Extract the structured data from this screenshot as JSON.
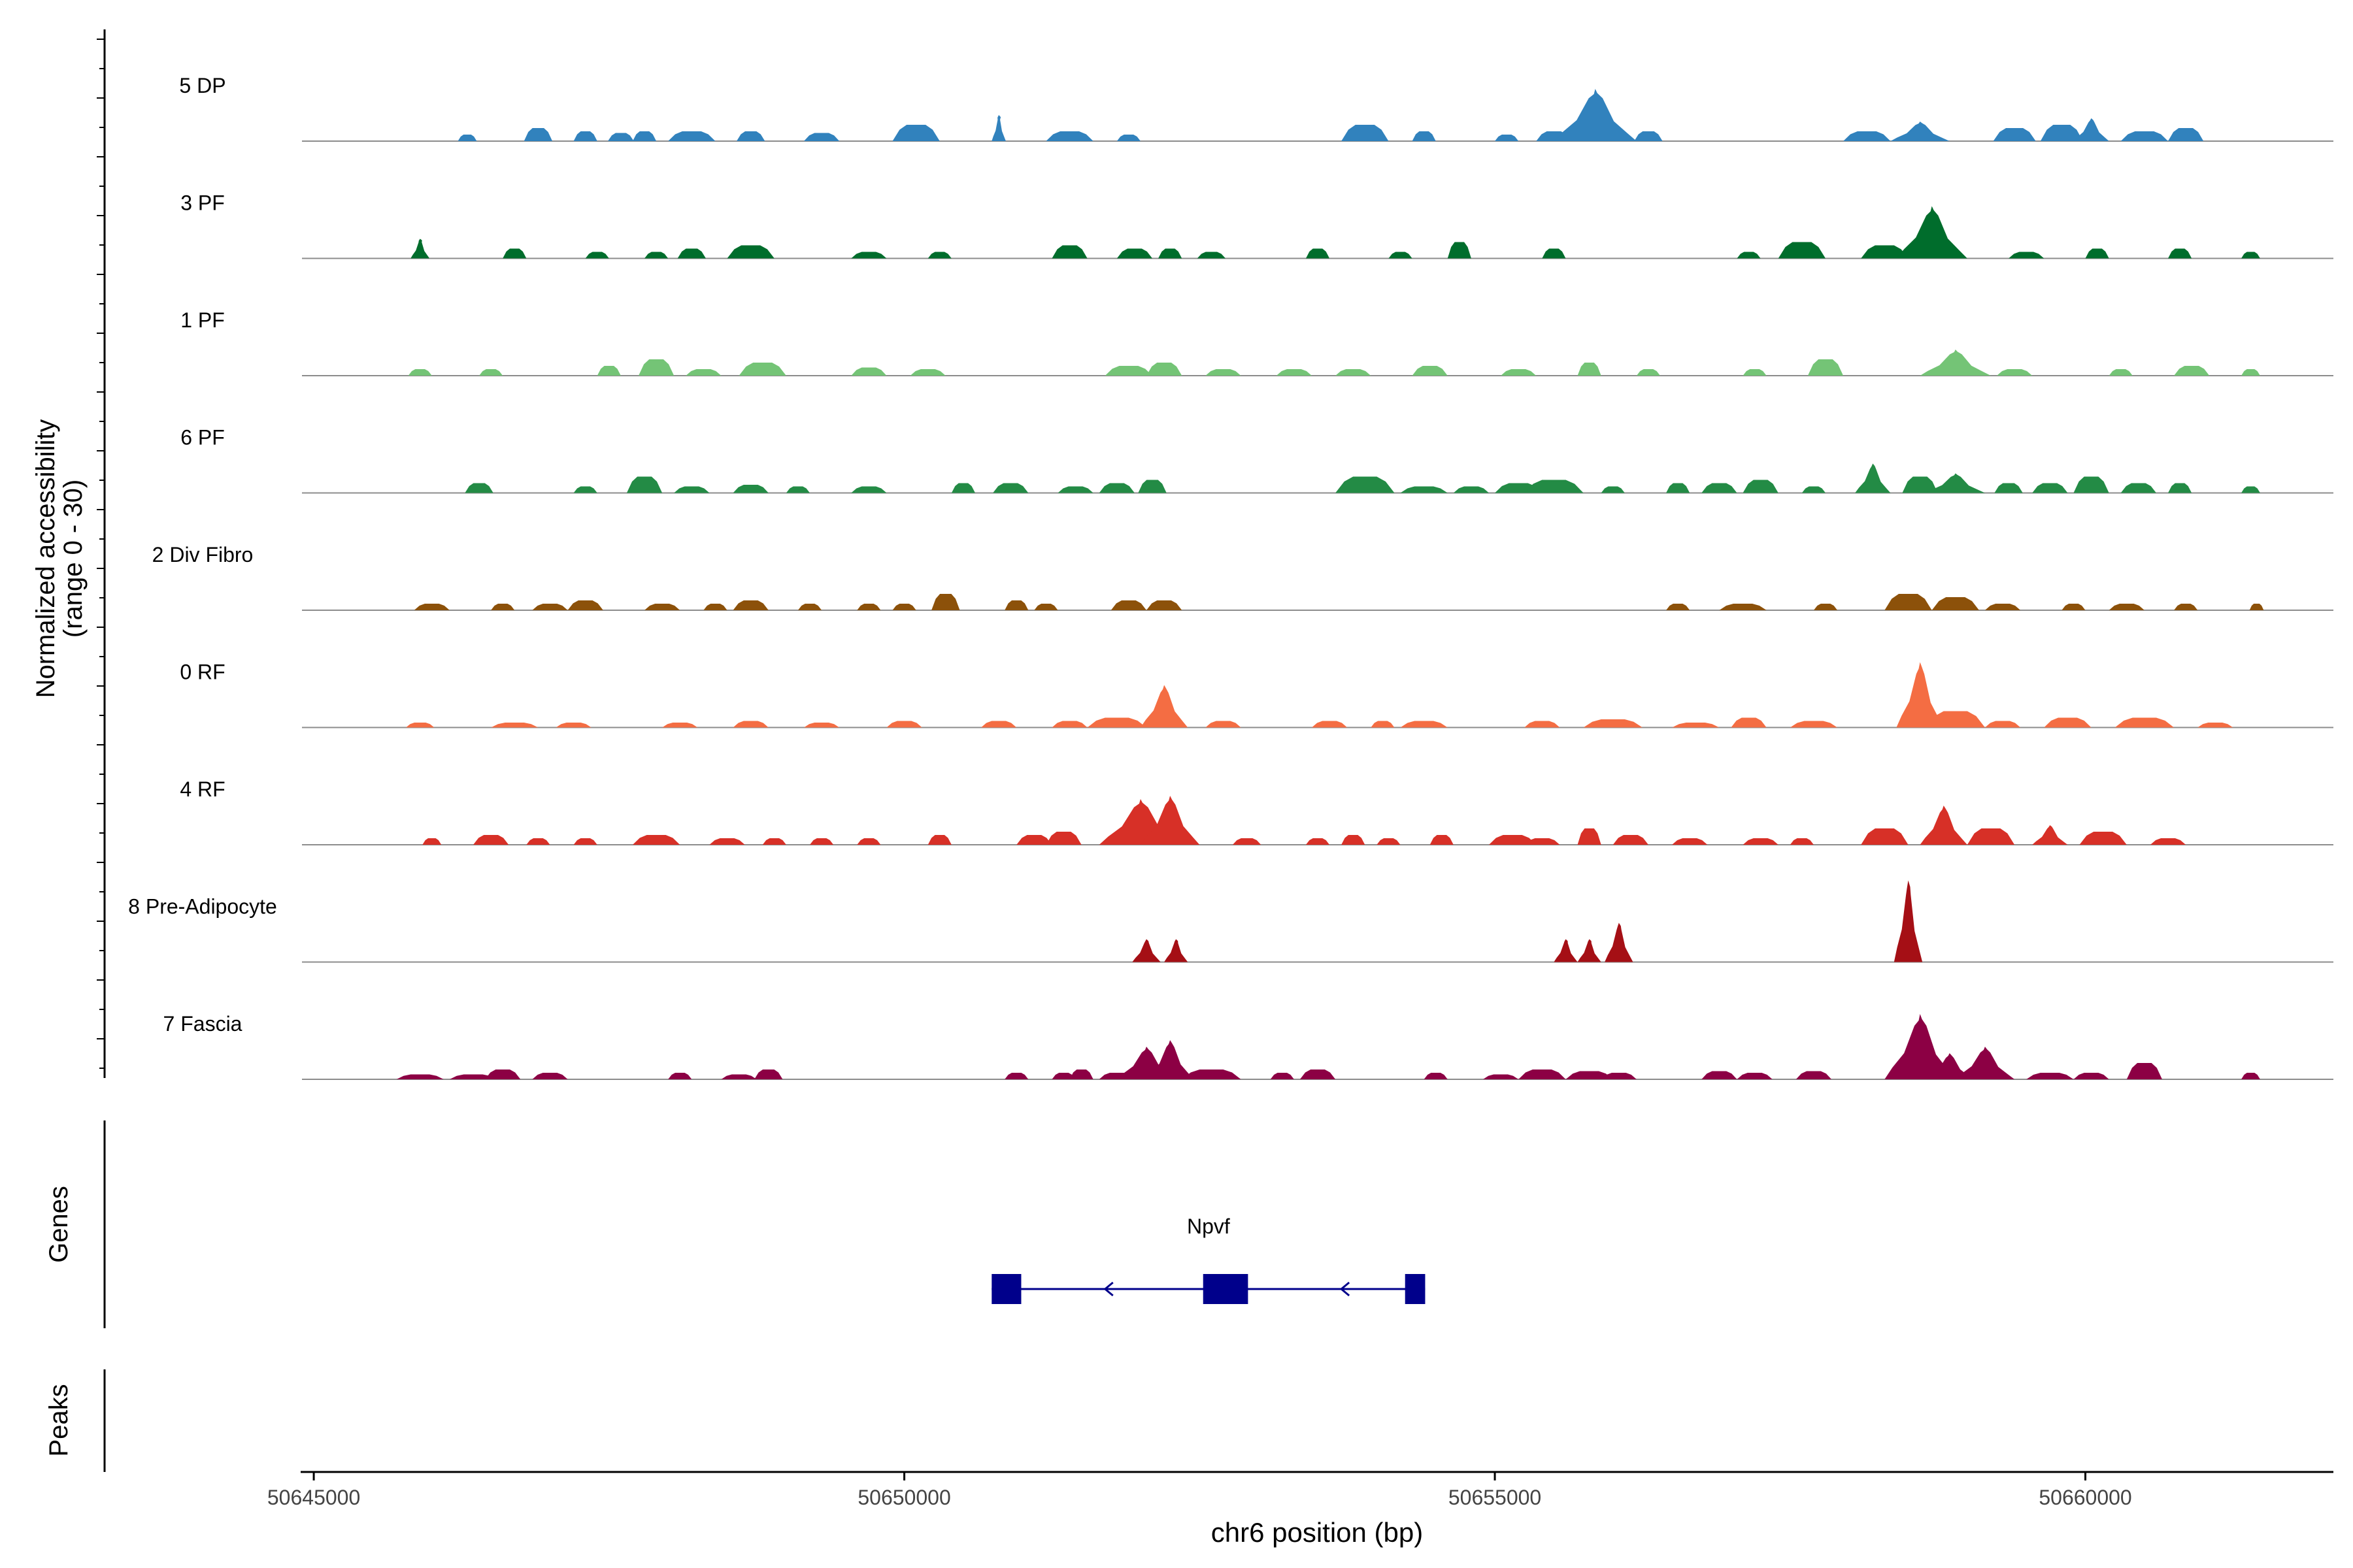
{
  "chart_data": {
    "type": "area",
    "title": "",
    "ylabel_line1": "Normalized accessibility",
    "ylabel_line2": "(range 0 - 30)",
    "xlabel": "chr6 position (bp)",
    "xlim": [
      50644900,
      50662100
    ],
    "ylim": [
      0,
      30
    ],
    "x_ticks": [
      {
        "value": 50645000,
        "label": "50645000"
      },
      {
        "value": 50650000,
        "label": "50650000"
      },
      {
        "value": 50655000,
        "label": "50655000"
      },
      {
        "value": 50660000,
        "label": "50660000"
      }
    ],
    "baseline_color": "#8c8c8c",
    "tracks": [
      {
        "name": "5 DP",
        "color": "#3182bd",
        "peaks": [
          [
            50646300,
            80,
            2
          ],
          [
            50646900,
            120,
            4
          ],
          [
            50647300,
            100,
            3
          ],
          [
            50647600,
            110,
            2.5
          ],
          [
            50647800,
            100,
            3
          ],
          [
            50648200,
            200,
            3
          ],
          [
            50648700,
            120,
            3
          ],
          [
            50649300,
            150,
            2.5
          ],
          [
            50650100,
            200,
            5
          ],
          [
            50650800,
            60,
            8
          ],
          [
            50651400,
            200,
            3
          ],
          [
            50651900,
            100,
            2
          ],
          [
            50653900,
            200,
            5
          ],
          [
            50654400,
            100,
            3
          ],
          [
            50655100,
            100,
            2
          ],
          [
            50655500,
            150,
            3
          ],
          [
            50655850,
            350,
            16
          ],
          [
            50656300,
            120,
            3
          ],
          [
            50658150,
            200,
            3
          ],
          [
            50658600,
            250,
            6
          ],
          [
            50659400,
            180,
            4
          ],
          [
            50659800,
            180,
            5
          ],
          [
            50660050,
            150,
            7
          ],
          [
            50660500,
            200,
            3
          ],
          [
            50660850,
            150,
            4
          ]
        ]
      },
      {
        "name": "3 PF",
        "color": "#006d2c",
        "peaks": [
          [
            50645900,
            80,
            6
          ],
          [
            50646700,
            100,
            3
          ],
          [
            50647400,
            100,
            2
          ],
          [
            50647900,
            100,
            2
          ],
          [
            50648200,
            120,
            3
          ],
          [
            50648700,
            200,
            4
          ],
          [
            50649700,
            150,
            2
          ],
          [
            50650300,
            100,
            2
          ],
          [
            50651400,
            150,
            4
          ],
          [
            50651950,
            150,
            3
          ],
          [
            50652250,
            100,
            3
          ],
          [
            50652600,
            120,
            2
          ],
          [
            50653500,
            100,
            3
          ],
          [
            50654200,
            100,
            2
          ],
          [
            50654700,
            100,
            5
          ],
          [
            50655500,
            100,
            3
          ],
          [
            50657150,
            100,
            2
          ],
          [
            50657600,
            200,
            5
          ],
          [
            50658300,
            200,
            4
          ],
          [
            50658700,
            300,
            16
          ],
          [
            50659500,
            150,
            2
          ],
          [
            50660100,
            100,
            3
          ],
          [
            50660800,
            100,
            3
          ],
          [
            50661400,
            80,
            2
          ]
        ]
      },
      {
        "name": "1 PF",
        "color": "#74c476",
        "peaks": [
          [
            50645900,
            100,
            2
          ],
          [
            50646500,
            100,
            2
          ],
          [
            50647500,
            100,
            3
          ],
          [
            50647900,
            150,
            5
          ],
          [
            50648300,
            150,
            2
          ],
          [
            50648800,
            200,
            4
          ],
          [
            50649700,
            150,
            2.5
          ],
          [
            50650200,
            150,
            2
          ],
          [
            50651900,
            200,
            3
          ],
          [
            50652200,
            150,
            4
          ],
          [
            50652700,
            150,
            2
          ],
          [
            50653300,
            150,
            2
          ],
          [
            50653800,
            150,
            2
          ],
          [
            50654450,
            150,
            3
          ],
          [
            50655200,
            150,
            2
          ],
          [
            50655800,
            100,
            4
          ],
          [
            50656300,
            100,
            2
          ],
          [
            50657200,
            100,
            2
          ],
          [
            50657800,
            150,
            5
          ],
          [
            50658900,
            300,
            8
          ],
          [
            50659400,
            150,
            2
          ],
          [
            50660300,
            100,
            2
          ],
          [
            50660900,
            150,
            3
          ],
          [
            50661400,
            80,
            2
          ]
        ]
      },
      {
        "name": "6 PF",
        "color": "#238b45",
        "peaks": [
          [
            50646400,
            120,
            3
          ],
          [
            50647300,
            100,
            2
          ],
          [
            50647800,
            150,
            5
          ],
          [
            50648200,
            150,
            2
          ],
          [
            50648700,
            150,
            2.5
          ],
          [
            50649100,
            100,
            2
          ],
          [
            50649700,
            150,
            2
          ],
          [
            50650500,
            100,
            3
          ],
          [
            50650900,
            150,
            3
          ],
          [
            50651450,
            150,
            2
          ],
          [
            50651800,
            150,
            3
          ],
          [
            50652100,
            120,
            4
          ],
          [
            50653900,
            250,
            5
          ],
          [
            50654400,
            200,
            2
          ],
          [
            50654800,
            150,
            2
          ],
          [
            50655200,
            200,
            3
          ],
          [
            50655500,
            250,
            4
          ],
          [
            50656000,
            100,
            2
          ],
          [
            50656550,
            100,
            3
          ],
          [
            50656900,
            150,
            3
          ],
          [
            50657250,
            150,
            4
          ],
          [
            50657700,
            100,
            2
          ],
          [
            50658200,
            150,
            9
          ],
          [
            50658600,
            150,
            5
          ],
          [
            50658900,
            250,
            6
          ],
          [
            50659350,
            120,
            3
          ],
          [
            50659700,
            150,
            3
          ],
          [
            50660050,
            150,
            5
          ],
          [
            50660450,
            150,
            3
          ],
          [
            50660800,
            100,
            3
          ],
          [
            50661400,
            80,
            2
          ]
        ]
      },
      {
        "name": "2 Div Fibro",
        "color": "#8c510a",
        "peaks": [
          [
            50646000,
            150,
            2
          ],
          [
            50646600,
            100,
            2
          ],
          [
            50647000,
            150,
            2
          ],
          [
            50647300,
            150,
            3
          ],
          [
            50647950,
            150,
            2
          ],
          [
            50648400,
            100,
            2
          ],
          [
            50648700,
            150,
            3
          ],
          [
            50649200,
            100,
            2
          ],
          [
            50649700,
            100,
            2
          ],
          [
            50650000,
            100,
            2
          ],
          [
            50650350,
            120,
            5
          ],
          [
            50650950,
            100,
            3
          ],
          [
            50651200,
            100,
            2
          ],
          [
            50651900,
            150,
            3
          ],
          [
            50652200,
            150,
            3
          ],
          [
            50656550,
            100,
            2
          ],
          [
            50657100,
            200,
            2
          ],
          [
            50657800,
            100,
            2
          ],
          [
            50658500,
            200,
            5
          ],
          [
            50658900,
            200,
            4
          ],
          [
            50659300,
            150,
            2
          ],
          [
            50659900,
            100,
            2
          ],
          [
            50660350,
            150,
            2
          ],
          [
            50660850,
            100,
            2
          ],
          [
            50661450,
            60,
            2
          ]
        ]
      },
      {
        "name": "0 RF",
        "color": "#f46d43",
        "peaks": [
          [
            50645900,
            120,
            1.5
          ],
          [
            50646700,
            200,
            1.5
          ],
          [
            50647200,
            150,
            1.5
          ],
          [
            50648100,
            150,
            1.5
          ],
          [
            50648700,
            150,
            2
          ],
          [
            50649300,
            150,
            1.5
          ],
          [
            50650000,
            150,
            2
          ],
          [
            50650800,
            150,
            2
          ],
          [
            50651400,
            150,
            2
          ],
          [
            50651800,
            250,
            3
          ],
          [
            50652200,
            200,
            13
          ],
          [
            50652700,
            150,
            2
          ],
          [
            50653600,
            150,
            2
          ],
          [
            50654050,
            100,
            2
          ],
          [
            50654400,
            200,
            2
          ],
          [
            50655400,
            150,
            2
          ],
          [
            50656000,
            250,
            2.5
          ],
          [
            50656700,
            200,
            1.5
          ],
          [
            50657150,
            150,
            3
          ],
          [
            50657700,
            200,
            2
          ],
          [
            50658600,
            200,
            20
          ],
          [
            50658900,
            250,
            5
          ],
          [
            50659300,
            150,
            2
          ],
          [
            50659850,
            200,
            3
          ],
          [
            50660500,
            250,
            3
          ],
          [
            50661100,
            150,
            1.5
          ]
        ]
      },
      {
        "name": "4 RF",
        "color": "#d73027",
        "peaks": [
          [
            50646000,
            80,
            2
          ],
          [
            50646500,
            150,
            3
          ],
          [
            50646900,
            100,
            2
          ],
          [
            50647300,
            100,
            2
          ],
          [
            50647900,
            200,
            3
          ],
          [
            50648500,
            150,
            2
          ],
          [
            50648900,
            100,
            2
          ],
          [
            50649300,
            100,
            2
          ],
          [
            50649700,
            100,
            2
          ],
          [
            50650300,
            100,
            3
          ],
          [
            50651100,
            150,
            3
          ],
          [
            50651350,
            150,
            4
          ],
          [
            50652000,
            350,
            14
          ],
          [
            50652250,
            250,
            15
          ],
          [
            50652900,
            120,
            2
          ],
          [
            50653500,
            100,
            2
          ],
          [
            50653800,
            100,
            3
          ],
          [
            50654100,
            100,
            2
          ],
          [
            50654550,
            100,
            3
          ],
          [
            50655150,
            200,
            3
          ],
          [
            50655400,
            150,
            2
          ],
          [
            50655800,
            100,
            5
          ],
          [
            50656150,
            150,
            3
          ],
          [
            50656650,
            150,
            2
          ],
          [
            50657250,
            150,
            2
          ],
          [
            50657600,
            100,
            2
          ],
          [
            50658300,
            200,
            5
          ],
          [
            50658800,
            200,
            12
          ],
          [
            50659200,
            200,
            5
          ],
          [
            50659700,
            150,
            6
          ],
          [
            50660150,
            200,
            4
          ],
          [
            50660700,
            150,
            2
          ]
        ]
      },
      {
        "name": "8 Pre-Adipocyte",
        "color": "#a50f15",
        "peaks": [
          [
            50652050,
            120,
            7
          ],
          [
            50652300,
            100,
            7
          ],
          [
            50655600,
            100,
            7
          ],
          [
            50655800,
            100,
            7
          ],
          [
            50656050,
            120,
            12
          ],
          [
            50658500,
            120,
            25
          ]
        ]
      },
      {
        "name": "7 Fascia",
        "color": "#8c0044",
        "peaks": [
          [
            50645900,
            200,
            1.5
          ],
          [
            50646350,
            200,
            1.5
          ],
          [
            50646600,
            150,
            3
          ],
          [
            50647000,
            150,
            2
          ],
          [
            50648100,
            100,
            2
          ],
          [
            50648600,
            150,
            1.5
          ],
          [
            50648850,
            120,
            3
          ],
          [
            50650950,
            100,
            2
          ],
          [
            50651350,
            100,
            2
          ],
          [
            50651500,
            100,
            3
          ],
          [
            50651800,
            150,
            2
          ],
          [
            50652050,
            250,
            10
          ],
          [
            50652250,
            200,
            12
          ],
          [
            50652600,
            250,
            3
          ],
          [
            50653200,
            100,
            2
          ],
          [
            50653500,
            150,
            3
          ],
          [
            50654500,
            100,
            2
          ],
          [
            50655050,
            150,
            1.5
          ],
          [
            50655400,
            200,
            3
          ],
          [
            50655800,
            200,
            2.5
          ],
          [
            50656050,
            150,
            2
          ],
          [
            50656900,
            150,
            2.5
          ],
          [
            50657200,
            150,
            2
          ],
          [
            50657700,
            150,
            2.5
          ],
          [
            50658600,
            300,
            20
          ],
          [
            50658850,
            200,
            8
          ],
          [
            50659150,
            250,
            10
          ],
          [
            50659700,
            200,
            2
          ],
          [
            50660050,
            150,
            2
          ],
          [
            50660500,
            150,
            5
          ],
          [
            50661400,
            80,
            2
          ]
        ]
      }
    ],
    "genes_label": "Genes",
    "peaks_label": "Peaks",
    "gene": {
      "name": "Npvf",
      "color": "#00008b",
      "start": 50650740,
      "end": 50654410,
      "strand": "-",
      "exons": [
        [
          50650740,
          50650990
        ],
        [
          50652530,
          50652910
        ],
        [
          50654240,
          50654410
        ]
      ],
      "arrows": [
        50651700,
        50653700
      ]
    }
  }
}
